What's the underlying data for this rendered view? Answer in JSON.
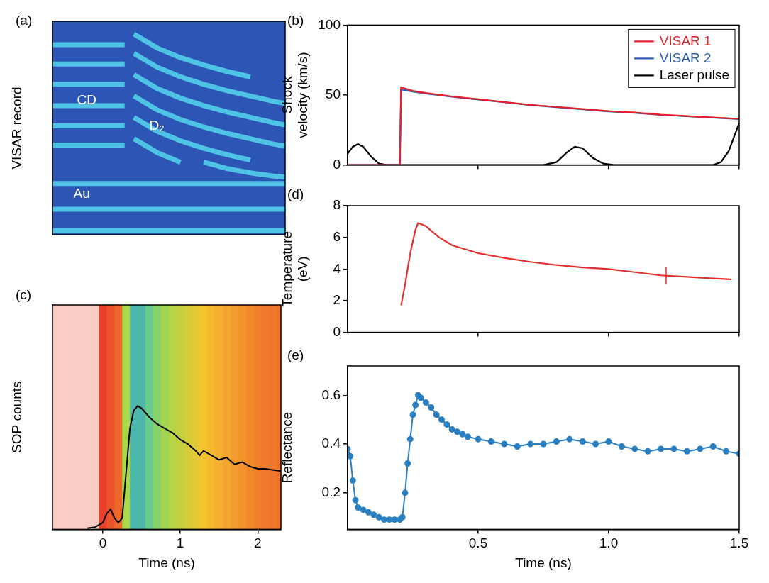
{
  "chart_data": [
    {
      "panel": "(a)",
      "type": "line",
      "y_label": "VISAR record",
      "xlim": [
        0,
        100
      ],
      "ylim": [
        0,
        100
      ],
      "tick_labels": false,
      "annotations": [
        {
          "text": "CD",
          "x": 10.5,
          "y": 63
        },
        {
          "text": "D₂",
          "x": 41.6,
          "y": 51
        },
        {
          "text": "Au",
          "x": 9,
          "y": 19
        }
      ],
      "series": [
        {
          "color": "#4ec3e6",
          "x": [
            0,
            31
          ],
          "values": [
            89,
            89
          ]
        },
        {
          "color": "#4ec3e6",
          "x": [
            0,
            31
          ],
          "values": [
            80,
            80
          ]
        },
        {
          "color": "#4ec3e6",
          "x": [
            0,
            31
          ],
          "values": [
            70.5,
            70.5
          ]
        },
        {
          "color": "#4ec3e6",
          "x": [
            0,
            31
          ],
          "values": [
            60.5,
            60.5
          ]
        },
        {
          "color": "#4ec3e6",
          "x": [
            0,
            31
          ],
          "values": [
            51,
            51
          ]
        },
        {
          "color": "#4ec3e6",
          "x": [
            0,
            31
          ],
          "values": [
            42,
            42
          ]
        },
        {
          "color": "#4ec3e6",
          "x": [
            35,
            45,
            55,
            65,
            75,
            85,
            95,
            100
          ],
          "values": [
            94,
            87.5,
            83,
            79.5,
            76.5,
            74,
            null,
            null
          ]
        },
        {
          "color": "#4ec3e6",
          "x": [
            35,
            45,
            55,
            65,
            75,
            85,
            95,
            100
          ],
          "values": [
            85,
            78.5,
            74,
            70.5,
            67.5,
            65,
            62.5,
            61.5
          ]
        },
        {
          "color": "#4ec3e6",
          "x": [
            35,
            45,
            55,
            65,
            75,
            85,
            95,
            100
          ],
          "values": [
            75,
            68.5,
            64,
            60.5,
            57.5,
            55,
            52.5,
            51.5
          ]
        },
        {
          "color": "#4ec3e6",
          "x": [
            35,
            45,
            55,
            65,
            75,
            85,
            95,
            100
          ],
          "values": [
            65,
            58.5,
            54,
            50.5,
            47.5,
            45,
            42.5,
            41.5
          ]
        },
        {
          "color": "#4ec3e6",
          "x": [
            35,
            45,
            55,
            65,
            75,
            85,
            95,
            100
          ],
          "values": [
            55,
            48.5,
            44,
            40.5,
            37.5,
            35,
            null,
            null
          ]
        },
        {
          "color": "#4ec3e6",
          "x": [
            35,
            45,
            55,
            65,
            75,
            85,
            95,
            100
          ],
          "values": [
            45,
            38.5,
            34,
            null,
            null,
            null,
            null,
            null
          ]
        },
        {
          "color": "#4ec3e6",
          "x": [
            35,
            45,
            55,
            65,
            75,
            85,
            95,
            100
          ],
          "values": [
            null,
            null,
            null,
            34,
            31,
            29,
            27.5,
            27
          ]
        },
        {
          "color": "#4ec3e6",
          "x": [
            0,
            100
          ],
          "values": [
            24,
            24
          ]
        },
        {
          "color": "#4ec3e6",
          "x": [
            0,
            100
          ],
          "values": [
            12,
            12
          ]
        },
        {
          "color": "#4ec3e6",
          "x": [
            0,
            100
          ],
          "values": [
            2,
            2
          ]
        }
      ]
    },
    {
      "panel": "(b)",
      "type": "line",
      "y_label": "Shock velocity (km/s)",
      "xlim": [
        0,
        1.5
      ],
      "xticks": [
        0.5,
        {
          "value": 1,
          "label": "1.0"
        },
        1.5
      ],
      "ylim": [
        0,
        100
      ],
      "yticks": [
        0,
        50,
        100
      ],
      "tick_labels": "y",
      "legend": "upper right",
      "series": [
        {
          "name": "VISAR 1",
          "color": "#e8202a",
          "x": [
            0,
            0.2,
            0.205,
            0.25,
            0.3,
            0.4,
            0.5,
            0.6,
            0.7,
            0.8,
            0.9,
            1.0,
            1.1,
            1.2,
            1.3,
            1.4,
            1.5
          ],
          "values": [
            0,
            0,
            55.5,
            53,
            51.5,
            49,
            47,
            45,
            43,
            41.5,
            40,
            38.5,
            37.5,
            36,
            35,
            34,
            33
          ]
        },
        {
          "name": "VISAR 2",
          "color": "#2a5cb8",
          "x": [
            0,
            0.2,
            0.205,
            0.25,
            0.3,
            0.4,
            0.5,
            0.6,
            0.7,
            0.8,
            0.9,
            1.0,
            1.1,
            1.2,
            1.3,
            1.4,
            1.5
          ],
          "values": [
            0,
            0,
            54,
            52.5,
            51,
            48.8,
            46.8,
            44.8,
            42.8,
            41.3,
            39.8,
            38.3,
            37.3,
            35.8,
            34.8,
            33.8,
            32.8
          ]
        },
        {
          "name": "Laser pulse",
          "color": "#000000",
          "x": [
            0,
            0.02,
            0.04,
            0.06,
            0.09,
            0.12,
            0.15,
            0.75,
            0.8,
            0.84,
            0.87,
            0.9,
            0.94,
            0.98,
            1.02,
            1.4,
            1.43,
            1.46,
            1.48,
            1.5
          ],
          "values": [
            8,
            13,
            15,
            13,
            6,
            1,
            0,
            0,
            2,
            9,
            13,
            12,
            5,
            1,
            0,
            0,
            2,
            10,
            20,
            30
          ]
        }
      ]
    },
    {
      "panel": "(c)",
      "type": "line",
      "y_label": "SOP counts",
      "x_label": "Time (ns)",
      "xlim": [
        -0.65,
        2.3
      ],
      "xticks": [
        0,
        1,
        2
      ],
      "ylim": [
        0,
        100
      ],
      "tick_labels": "x",
      "streak_intensity": {
        "x": [
          -0.6,
          -0.5,
          -0.4,
          -0.3,
          -0.2,
          -0.1,
          0,
          0.1,
          0.2,
          0.3,
          0.4,
          0.5,
          0.6,
          0.7,
          0.8,
          0.9,
          1.0,
          1.1,
          1.2,
          1.3,
          1.4,
          1.5,
          1.6,
          1.7,
          1.8,
          1.9,
          2.0,
          2.1,
          2.2,
          2.3
        ],
        "values": [
          0.08,
          0.08,
          0.08,
          0.08,
          0.08,
          0.08,
          0.3,
          0.35,
          0.4,
          0.72,
          0.85,
          0.85,
          0.8,
          0.76,
          0.73,
          0.7,
          0.68,
          0.65,
          0.63,
          0.6,
          0.58,
          0.56,
          0.54,
          0.52,
          0.5,
          0.48,
          0.46,
          0.45,
          0.44,
          0.43
        ]
      },
      "series": [
        {
          "color": "#000000",
          "x": [
            -0.2,
            -0.1,
            0,
            0.05,
            0.1,
            0.15,
            0.2,
            0.25,
            0.3,
            0.35,
            0.4,
            0.45,
            0.5,
            0.6,
            0.7,
            0.8,
            0.9,
            1.0,
            1.1,
            1.2,
            1.25,
            1.3,
            1.4,
            1.5,
            1.6,
            1.7,
            1.8,
            1.9,
            2.0,
            2.1,
            2.3
          ],
          "values": [
            0.5,
            1,
            3,
            7,
            9,
            5,
            3,
            5,
            25,
            45,
            53,
            55,
            54,
            50,
            47,
            45,
            43,
            40,
            38,
            35,
            33,
            35,
            33,
            31,
            32,
            29,
            30,
            28,
            27,
            27,
            26
          ]
        }
      ]
    },
    {
      "panel": "(d)",
      "type": "line",
      "y_label": "Temperature (eV)",
      "xlim": [
        0,
        1.5
      ],
      "xticks": [
        0.5,
        {
          "value": 1,
          "label": "1.0"
        },
        1.5
      ],
      "ylim": [
        0,
        8
      ],
      "yticks": [
        0,
        2,
        4,
        6,
        8
      ],
      "tick_labels": "y",
      "series": [
        {
          "color": "#e03030",
          "x": [
            0.205,
            0.22,
            0.24,
            0.26,
            0.27,
            0.28,
            0.3,
            0.35,
            0.4,
            0.5,
            0.6,
            0.7,
            0.8,
            0.9,
            1.0,
            1.1,
            1.2,
            1.3,
            1.4,
            1.47
          ],
          "values": [
            1.7,
            3.0,
            5.0,
            6.5,
            6.9,
            6.85,
            6.7,
            6.0,
            5.5,
            5.0,
            4.7,
            4.45,
            4.25,
            4.1,
            4.0,
            3.8,
            3.6,
            3.5,
            3.4,
            3.35
          ],
          "error_bars": [
            {
              "x": 1.22,
              "y": 3.6,
              "error": 0.55
            }
          ]
        }
      ]
    },
    {
      "panel": "(e)",
      "type": "line",
      "y_label": "Reflectance",
      "x_label": "Time (ns)",
      "xlim": [
        0,
        1.5
      ],
      "xticks": [
        0.5,
        {
          "value": 1,
          "label": "1.0"
        },
        1.5
      ],
      "ylim": [
        0.05,
        0.72
      ],
      "yticks": [
        0.2,
        0.4,
        0.6
      ],
      "series": [
        {
          "color": "#2a7fc1",
          "marker": "circle",
          "line_style": "solid",
          "x": [
            0,
            0.01,
            0.02,
            0.03,
            0.04,
            0.06,
            0.08,
            0.1,
            0.12,
            0.14,
            0.16,
            0.18,
            0.2,
            0.21,
            0.22,
            0.23,
            0.24,
            0.25,
            0.26,
            0.27,
            0.28,
            0.3,
            0.32,
            0.34,
            0.36,
            0.38,
            0.4,
            0.42,
            0.44,
            0.46,
            0.5,
            0.55,
            0.6,
            0.65,
            0.7,
            0.75,
            0.8,
            0.85,
            0.9,
            0.95,
            1.0,
            1.05,
            1.1,
            1.15,
            1.2,
            1.25,
            1.3,
            1.35,
            1.4,
            1.45,
            1.5
          ],
          "values": [
            0.38,
            0.35,
            0.25,
            0.17,
            0.14,
            0.13,
            0.12,
            0.11,
            0.1,
            0.09,
            0.09,
            0.09,
            0.09,
            0.1,
            0.2,
            0.32,
            0.42,
            0.52,
            0.56,
            0.6,
            0.59,
            0.57,
            0.55,
            0.52,
            0.5,
            0.48,
            0.46,
            0.45,
            0.44,
            0.43,
            0.42,
            0.41,
            0.4,
            0.39,
            0.4,
            0.4,
            0.41,
            0.42,
            0.41,
            0.4,
            0.41,
            0.39,
            0.38,
            0.37,
            0.38,
            0.38,
            0.37,
            0.38,
            0.39,
            0.37,
            0.36
          ]
        }
      ]
    }
  ]
}
